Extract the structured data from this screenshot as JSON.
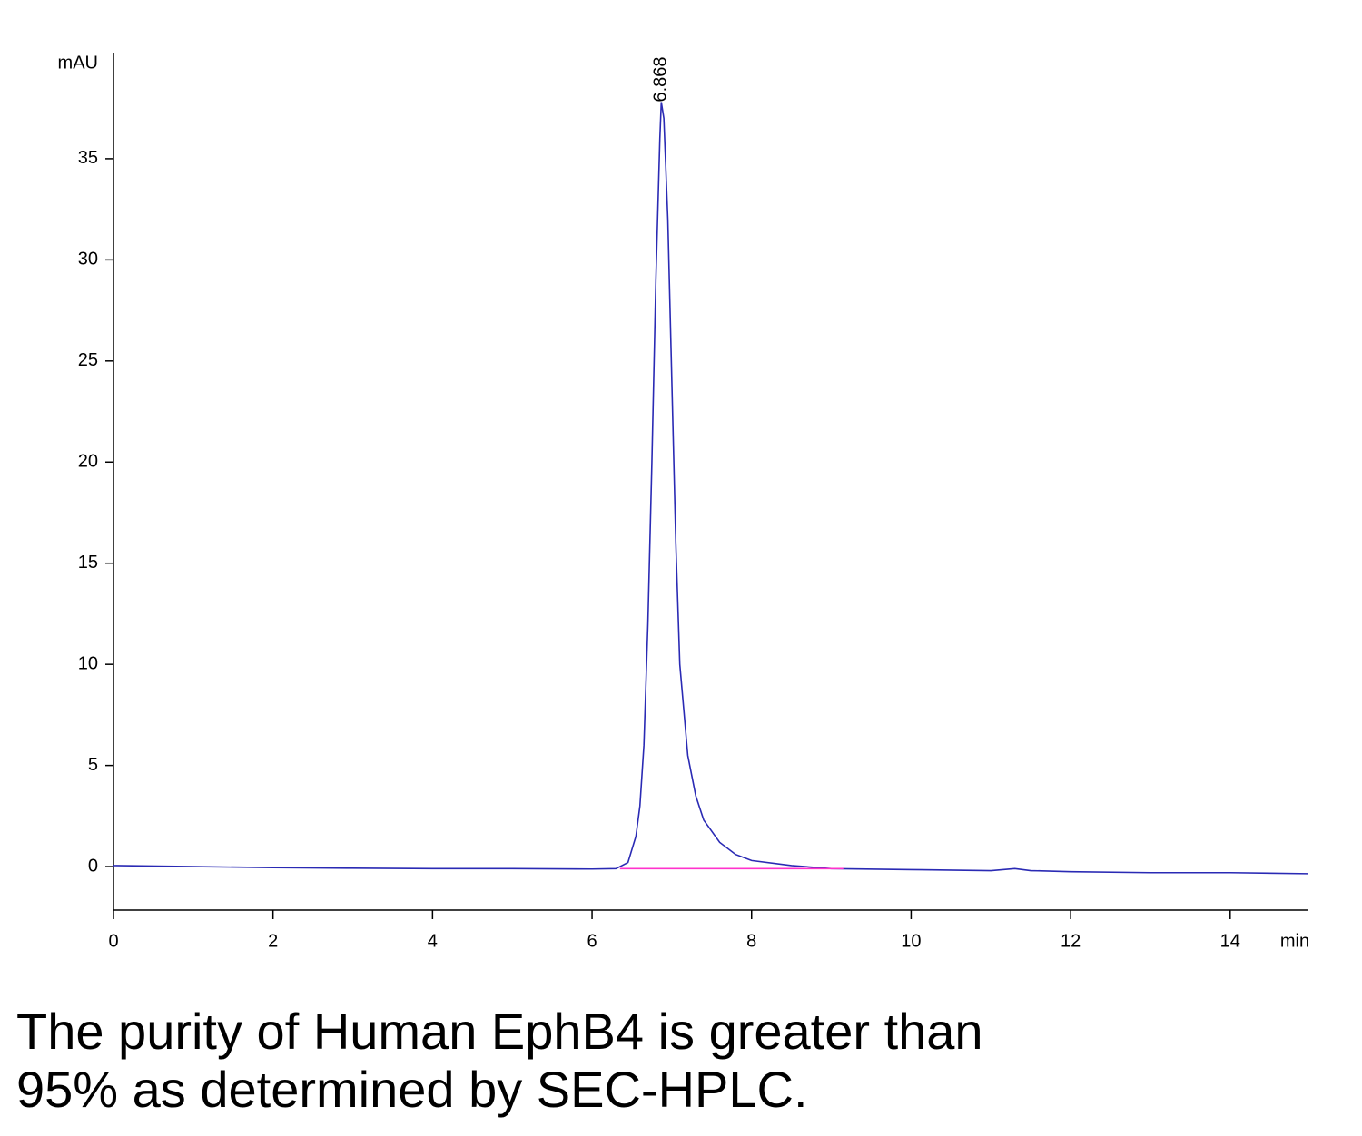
{
  "chart_data": {
    "type": "line",
    "ylabel": "mAU",
    "xlabel": "min",
    "xlim": [
      0,
      14.97
    ],
    "ylim": [
      -2.15,
      40.2
    ],
    "xticks": [
      0,
      2,
      4,
      6,
      8,
      10,
      12,
      14
    ],
    "yticks": [
      0,
      5,
      10,
      15,
      20,
      25,
      30,
      35
    ],
    "series": [
      {
        "color": "#2a2ab4",
        "x": [
          0,
          1,
          2,
          3,
          4,
          5,
          6,
          6.3,
          6.45,
          6.55,
          6.6,
          6.65,
          6.7,
          6.75,
          6.8,
          6.85,
          6.868,
          6.9,
          6.95,
          7.0,
          7.05,
          7.1,
          7.2,
          7.3,
          7.4,
          7.6,
          7.8,
          8.0,
          8.5,
          9,
          10,
          11,
          11.3,
          11.5,
          12,
          13,
          14,
          14.97
        ],
        "values": [
          0.05,
          0.0,
          -0.05,
          -0.08,
          -0.1,
          -0.1,
          -0.12,
          -0.1,
          0.2,
          1.5,
          3,
          6,
          12,
          20,
          29,
          36,
          37.8,
          37,
          32,
          24,
          16,
          10,
          5.5,
          3.5,
          2.3,
          1.2,
          0.6,
          0.3,
          0.05,
          -0.1,
          -0.15,
          -0.2,
          -0.1,
          -0.2,
          -0.25,
          -0.3,
          -0.3,
          -0.35
        ]
      },
      {
        "color": "#ff33cc",
        "x": [
          6.35,
          9.15
        ],
        "values": [
          -0.1,
          -0.1
        ]
      }
    ],
    "annotations": [
      {
        "x": 6.868,
        "y": 37.8,
        "text": "6.868"
      }
    ]
  },
  "caption": [
    "The purity of Human EphB4 is greater than",
    "95% as determined by SEC-HPLC."
  ]
}
